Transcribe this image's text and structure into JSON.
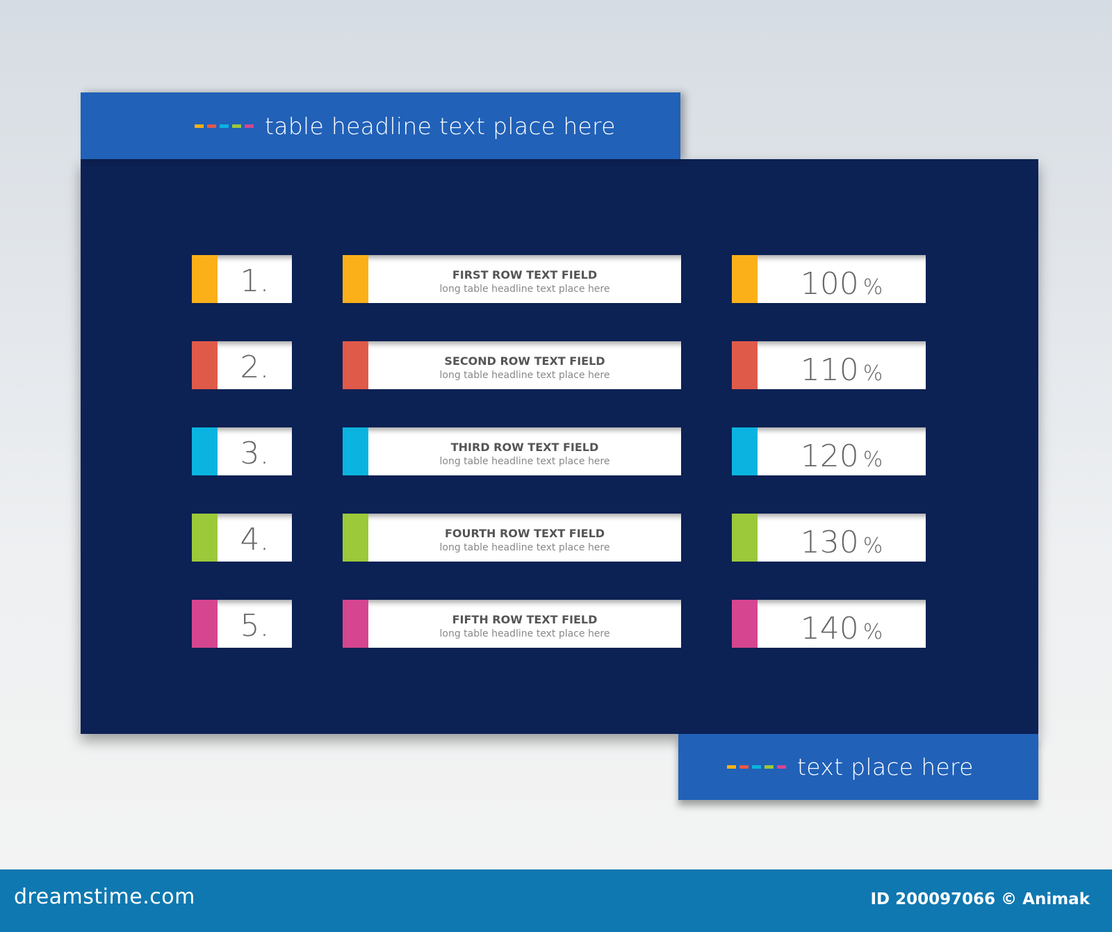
{
  "header": {
    "title": "table headline text place here"
  },
  "footer_box": {
    "text": "text place here"
  },
  "dash_colors": [
    "#fbb01a",
    "#e05a4a",
    "#0bb4e0",
    "#9bc93a",
    "#d6458f"
  ],
  "rows": [
    {
      "number": "1.",
      "title": "FIRST ROW TEXT FIELD",
      "subtitle": "long table headline text place here",
      "value": "100",
      "unit": "%",
      "color": "#fbb01a"
    },
    {
      "number": "2.",
      "title": "SECOND ROW TEXT FIELD",
      "subtitle": "long table headline text place here",
      "value": "110",
      "unit": "%",
      "color": "#e05a4a"
    },
    {
      "number": "3.",
      "title": "THIRD ROW TEXT FIELD",
      "subtitle": "long table headline text place here",
      "value": "120",
      "unit": "%",
      "color": "#0bb4e0"
    },
    {
      "number": "4.",
      "title": "FOURTH ROW TEXT FIELD",
      "subtitle": "long table headline text place here",
      "value": "130",
      "unit": "%",
      "color": "#9bc93a"
    },
    {
      "number": "5.",
      "title": "FIFTH ROW TEXT FIELD",
      "subtitle": "long table headline text place here",
      "value": "140",
      "unit": "%",
      "color": "#d6458f"
    }
  ],
  "watermark": {
    "logo": "dreamstime.com",
    "credit": "ID 200097066 © Animak"
  },
  "colors": {
    "panel": "#0c2154",
    "header": "#2161b8",
    "bar": "#0f78b0"
  }
}
